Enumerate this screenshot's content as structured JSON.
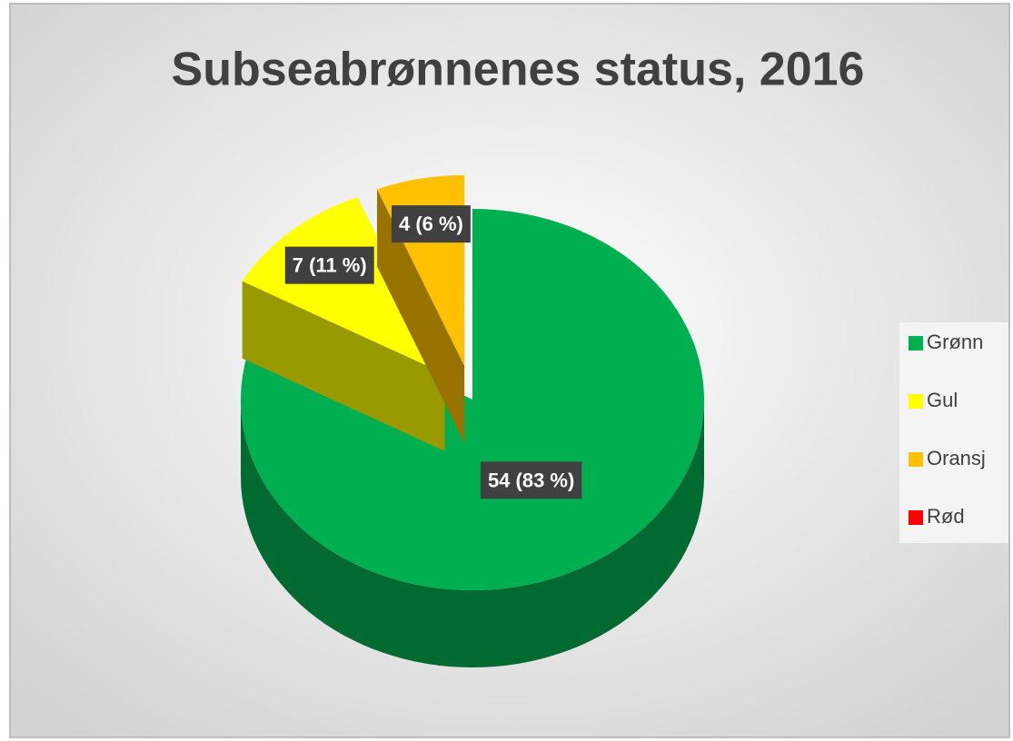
{
  "chart_data": {
    "type": "pie",
    "title": "Subseabrønnenes status, 2016",
    "categories": [
      "Grønn",
      "Gul",
      "Oransj",
      "Rød"
    ],
    "values": [
      54,
      7,
      4,
      0
    ],
    "value_labels": [
      "54 (83 %)",
      "7 (11 %)",
      "4 (6 %)",
      null
    ],
    "colors": [
      "#00b050",
      "#ffff00",
      "#ffc000",
      "#ff0000"
    ],
    "legend": "right"
  }
}
